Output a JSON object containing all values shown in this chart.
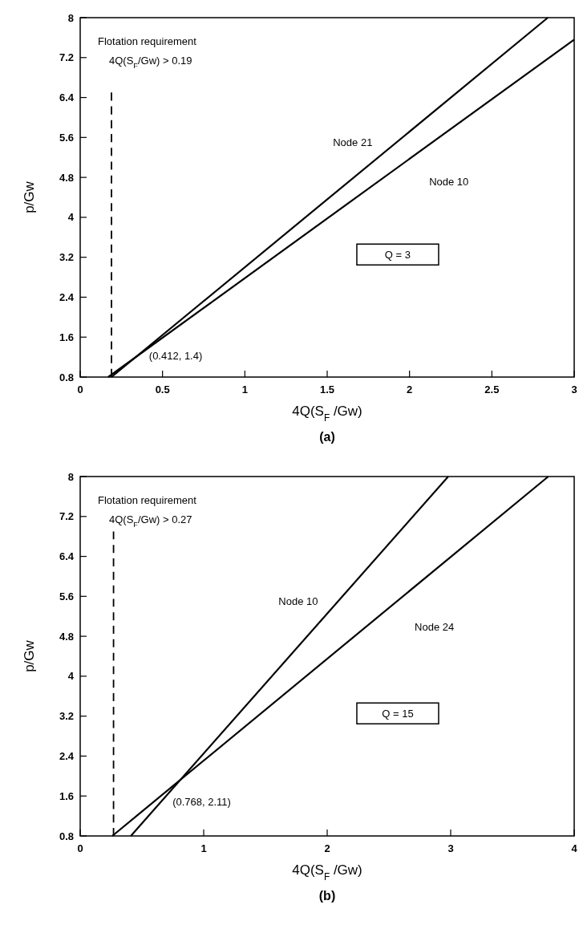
{
  "chart_data": [
    {
      "type": "line",
      "title": "(a)",
      "xlabel": "4Q(S$_{F}$ /Gw)",
      "ylabel": "p/Gw",
      "xlim": [
        0,
        3
      ],
      "xticks": [
        0,
        0.5,
        1,
        1.5,
        2,
        2.5,
        3
      ],
      "ylim": [
        0.8,
        8
      ],
      "yticks": [
        0.8,
        1.6,
        2.4,
        3.2,
        4,
        4.8,
        5.6,
        6.4,
        7.2,
        8
      ],
      "annotations": [
        "Flotation requirement",
        "4Q(S$_{F}$/Gw) > 0.19",
        "(0.412, 1.4)",
        "Q = 3"
      ],
      "series": [
        {
          "name": "Node 21",
          "color": "#000000",
          "x": [
            0.19,
            2.84
          ],
          "values": [
            0.8,
            8
          ]
        },
        {
          "name": "Node 10",
          "color": "#000000",
          "x": [
            0.17,
            3
          ],
          "values": [
            0.8,
            7.56
          ]
        },
        {
          "color": "#000000",
          "line_style": "dashed",
          "x": [
            0.19,
            0.19
          ],
          "values": [
            0.8,
            6.5
          ]
        }
      ]
    },
    {
      "type": "line",
      "title": "(b)",
      "xlabel": "4Q(S$_{F}$ /Gw)",
      "ylabel": "p/Gw",
      "xlim": [
        0,
        4
      ],
      "xticks": [
        0,
        1,
        2,
        3,
        4
      ],
      "ylim": [
        0.8,
        8
      ],
      "yticks": [
        0.8,
        1.6,
        2.4,
        3.2,
        4,
        4.8,
        5.6,
        6.4,
        7.2,
        8
      ],
      "annotations": [
        "Flotation requirement",
        "4Q(S$_{F}$/Gw) > 0.27",
        "(0.768, 2.11)",
        "Q = 15"
      ],
      "series": [
        {
          "name": "Node 10",
          "color": "#000000",
          "x": [
            0.41,
            2.98
          ],
          "values": [
            0.8,
            8
          ]
        },
        {
          "name": "Node 24",
          "color": "#000000",
          "x": [
            0.26,
            3.79
          ],
          "values": [
            0.8,
            8
          ]
        },
        {
          "color": "#000000",
          "line_style": "dashed",
          "x": [
            0.27,
            0.27
          ],
          "values": [
            0.8,
            6.9
          ]
        }
      ]
    }
  ]
}
